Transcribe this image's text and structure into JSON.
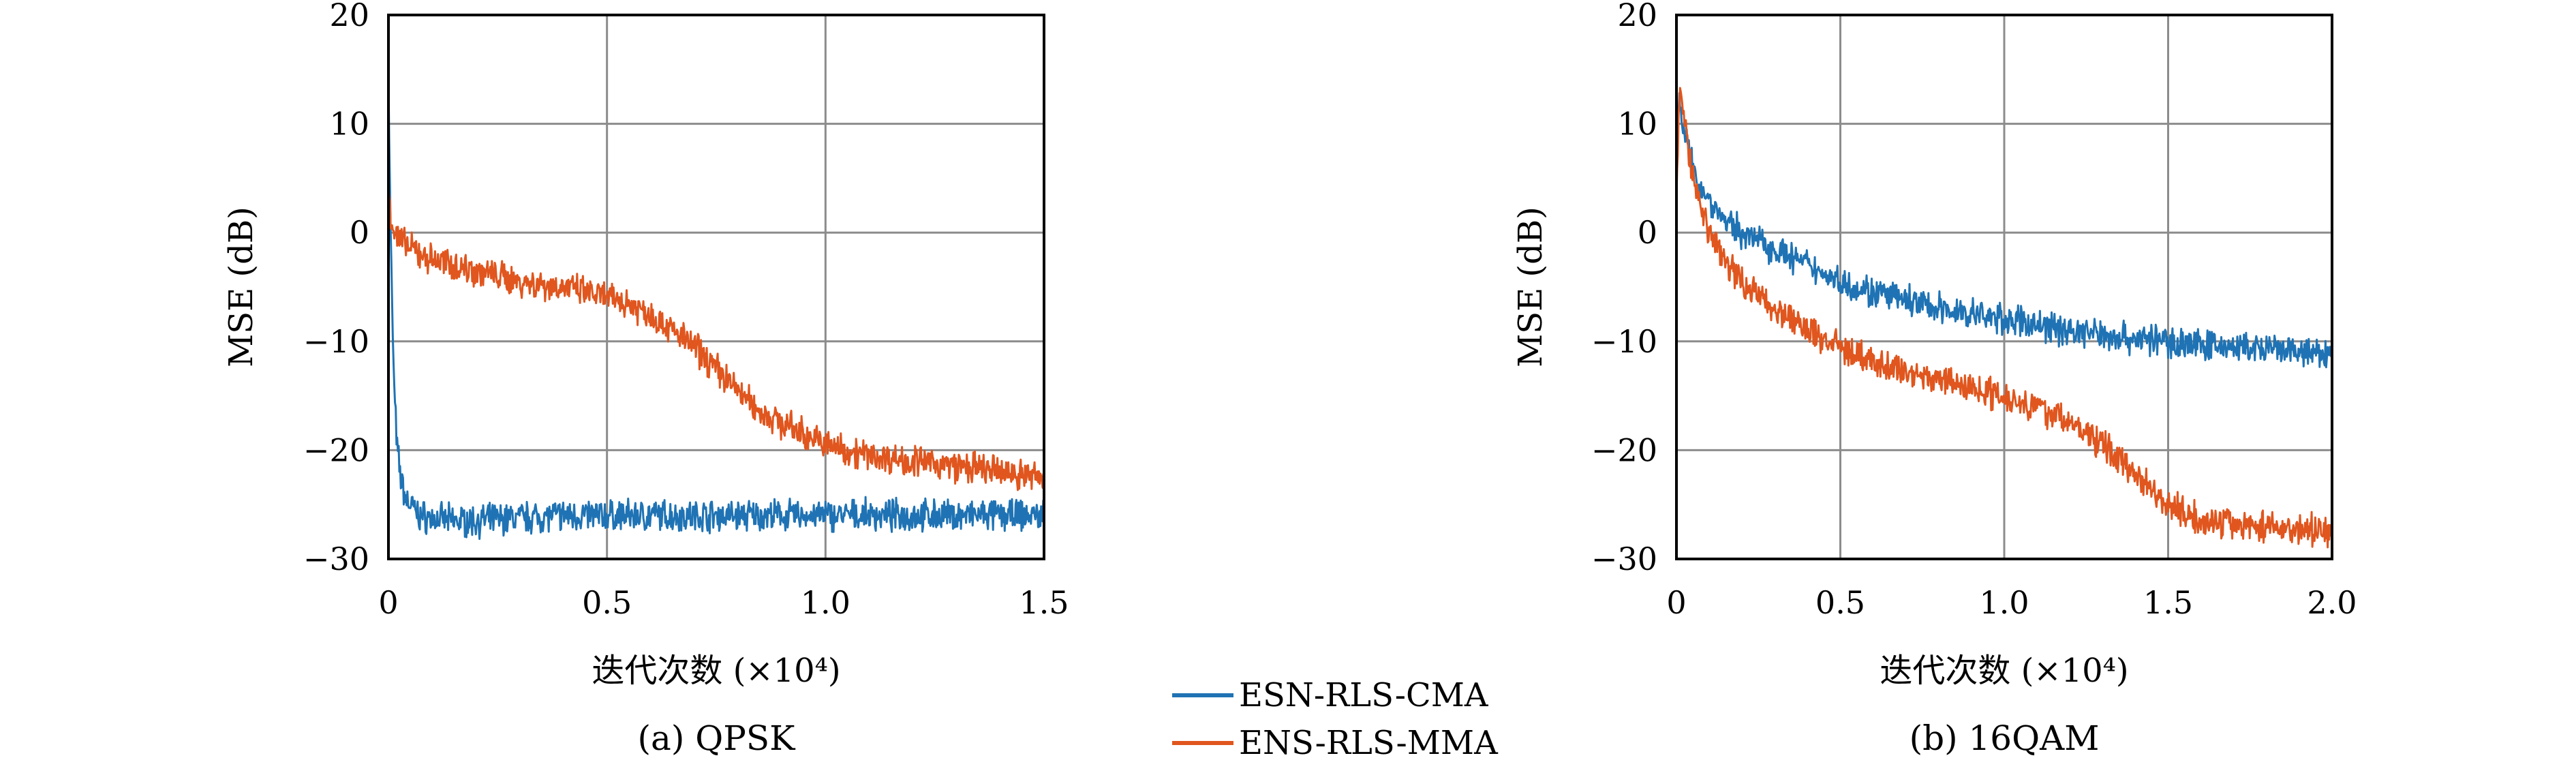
{
  "colors": {
    "esn_rls_cma": "#1f73b4",
    "ens_rls_mma": "#e0561e",
    "grid": "#8c8c8c",
    "axis": "#000000"
  },
  "legend": {
    "items": [
      "ESN-RLS-CMA",
      "ENS-RLS-MMA"
    ]
  },
  "chart_data": [
    {
      "type": "line",
      "caption": "(a) QPSK",
      "xlabel": "迭代次数 (×10⁴)",
      "ylabel": "MSE (dB)",
      "xlim": [
        0,
        1.5
      ],
      "ylim": [
        -30,
        20
      ],
      "xticks": [
        "0",
        "0.5",
        "1.0",
        "1.5"
      ],
      "yticks": [
        "20",
        "10",
        "0",
        "−10",
        "−20",
        "−30"
      ],
      "grid": true,
      "series": [
        {
          "name": "ESN-RLS-CMA",
          "x": [
            0,
            0.003,
            0.006,
            0.01,
            0.015,
            0.02,
            0.03,
            0.04,
            0.05,
            0.07,
            0.1,
            0.15,
            0.2,
            0.3,
            0.4,
            0.5,
            0.6,
            0.7,
            0.8,
            0.9,
            1.0,
            1.1,
            1.2,
            1.3,
            1.4,
            1.5
          ],
          "y": [
            15,
            5,
            -2,
            -10,
            -16,
            -20,
            -23,
            -24.5,
            -25,
            -26,
            -26.3,
            -26.5,
            -26.5,
            -26.2,
            -26,
            -26,
            -26,
            -26,
            -26,
            -26,
            -26,
            -26,
            -26,
            -26,
            -26,
            -26
          ]
        },
        {
          "name": "ENS-RLS-MMA",
          "x": [
            0,
            0.005,
            0.01,
            0.02,
            0.05,
            0.1,
            0.2,
            0.3,
            0.4,
            0.5,
            0.55,
            0.6,
            0.65,
            0.7,
            0.75,
            0.8,
            0.85,
            0.9,
            0.95,
            1.0,
            1.1,
            1.2,
            1.3,
            1.4,
            1.5
          ],
          "y": [
            4,
            2,
            0.5,
            -0.5,
            -1.5,
            -2.5,
            -3.5,
            -4.5,
            -5,
            -6,
            -6.5,
            -7.5,
            -9,
            -10.5,
            -12.5,
            -14.5,
            -16.5,
            -17.5,
            -18.5,
            -19.5,
            -20.5,
            -21,
            -21.5,
            -22,
            -22.5
          ]
        }
      ]
    },
    {
      "type": "line",
      "caption": "(b) 16QAM",
      "xlabel": "迭代次数 (×10⁴)",
      "ylabel": "MSE (dB)",
      "xlim": [
        0,
        2.0
      ],
      "ylim": [
        -30,
        20
      ],
      "xticks": [
        "0",
        "0.5",
        "1.0",
        "1.5",
        "2.0"
      ],
      "yticks": [
        "20",
        "10",
        "0",
        "−10",
        "−20",
        "−30"
      ],
      "grid": true,
      "series": [
        {
          "name": "ESN-RLS-CMA",
          "x": [
            0,
            0.01,
            0.02,
            0.04,
            0.06,
            0.1,
            0.15,
            0.2,
            0.3,
            0.4,
            0.5,
            0.6,
            0.8,
            1.0,
            1.2,
            1.4,
            1.6,
            1.8,
            2.0
          ],
          "y": [
            6,
            13,
            10,
            7,
            5,
            3,
            1,
            0,
            -1.5,
            -3,
            -4.5,
            -5.5,
            -7,
            -8,
            -9,
            -9.7,
            -10.3,
            -10.8,
            -11.3
          ]
        },
        {
          "name": "ENS-RLS-MMA",
          "x": [
            0,
            0.01,
            0.02,
            0.04,
            0.06,
            0.1,
            0.15,
            0.2,
            0.3,
            0.4,
            0.5,
            0.6,
            0.8,
            1.0,
            1.1,
            1.2,
            1.3,
            1.4,
            1.5,
            1.6,
            1.8,
            2.0
          ],
          "y": [
            4,
            13,
            11,
            7,
            4,
            0,
            -2.5,
            -4.5,
            -7,
            -9,
            -10.5,
            -12,
            -13.5,
            -15,
            -16,
            -17.5,
            -19.5,
            -22,
            -25,
            -26.5,
            -27,
            -27.5
          ]
        }
      ]
    }
  ]
}
